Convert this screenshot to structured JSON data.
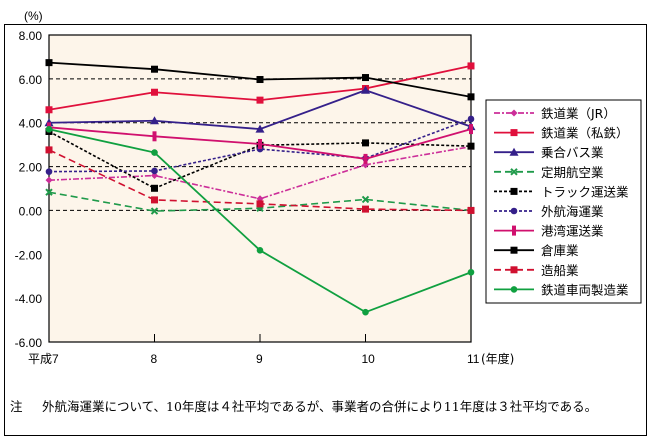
{
  "chart_data": {
    "type": "line",
    "title": "",
    "ylabel": "(%)",
    "xlabel": "(年度)",
    "x": [
      "平成7",
      "8",
      "9",
      "10",
      "11"
    ],
    "ylim": [
      -6,
      8
    ],
    "yticks": [
      "8.00",
      "6.00",
      "4.00",
      "2.00",
      "0.00",
      "-2.00",
      "-4.00",
      "-6.00"
    ],
    "grid": true,
    "legend_position": "right",
    "series": [
      {
        "name": "鉄道業（JR）",
        "values": [
          1.38,
          1.59,
          0.53,
          2.08,
          2.91
        ],
        "color": "#cc2e99",
        "style": "dashdot",
        "marker": "diamond"
      },
      {
        "name": "鉄道業（私鉄）",
        "values": [
          4.59,
          5.39,
          5.03,
          5.56,
          6.59
        ],
        "color": "#e0103c",
        "style": "solid",
        "marker": "square"
      },
      {
        "name": "乗合バス業",
        "values": [
          4.0,
          4.09,
          3.71,
          5.48,
          3.82
        ],
        "color": "#35208a",
        "style": "solid",
        "marker": "triangle"
      },
      {
        "name": "定期航空業",
        "values": [
          0.83,
          -0.03,
          0.1,
          0.5,
          0.0
        ],
        "color": "#1f9a4a",
        "style": "dashed",
        "marker": "x"
      },
      {
        "name": "トラック運送業",
        "values": [
          3.6,
          1.01,
          2.97,
          3.08,
          2.93
        ],
        "color": "#000000",
        "style": "dotted",
        "marker": "square"
      },
      {
        "name": "外航海運業",
        "values": [
          1.77,
          1.8,
          2.8,
          2.38,
          4.17
        ],
        "color": "#35208a",
        "style": "dotted",
        "marker": "circle"
      },
      {
        "name": "港湾運送業",
        "values": [
          3.79,
          3.38,
          3.03,
          2.35,
          3.71
        ],
        "color": "#d0106e",
        "style": "solid",
        "marker": "bar"
      },
      {
        "name": "倉庫業",
        "values": [
          6.74,
          6.44,
          5.97,
          6.06,
          5.18
        ],
        "color": "#000000",
        "style": "solid",
        "marker": "square"
      },
      {
        "name": "造船業",
        "values": [
          2.76,
          0.48,
          0.3,
          0.06,
          0.0
        ],
        "color": "#d01030",
        "style": "dashed",
        "marker": "square"
      },
      {
        "name": "鉄道車両製造業",
        "values": [
          3.7,
          2.64,
          -1.82,
          -4.64,
          -2.82
        ],
        "color": "#10a040",
        "style": "solid",
        "marker": "circle"
      }
    ]
  },
  "note": {
    "label": "注",
    "text": "外航海運業について、10年度は４社平均であるが、事業者の合併により11年度は３社平均である。"
  }
}
